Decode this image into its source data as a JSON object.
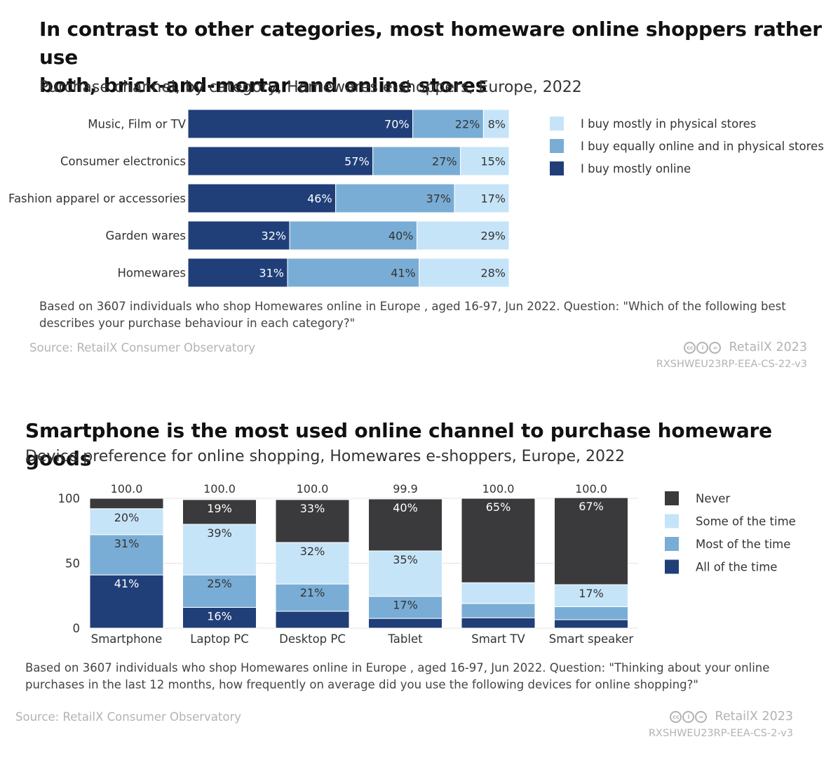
{
  "colors": {
    "physical": "#c6e4f8",
    "equal": "#79add5",
    "online": "#203f79",
    "never": "#3a3a3c",
    "some": "#c6e4f8",
    "most": "#79add5",
    "all": "#203f79"
  },
  "chart1": {
    "title": "In contrast to other categories, most homeware online shoppers rather use both, brick-and-mortar and online stores",
    "title_line1": "In contrast to other categories, most homeware online shoppers rather use",
    "title_line2": "both, brick-and-mortar and online stores",
    "subtitle": "Purchase channel, by category, Homewares e-shoppers, Europe, 2022",
    "note_line1": "Based on 3607 individuals who shop Homewares online in Europe , aged 16-97, Jun 2022. Question: \"Which of the following best",
    "note_line2": "describes your purchase behaviour in each category?\"",
    "source": "Source: RetailX Consumer Observatory",
    "brand": "RetailX 2023",
    "code": "RXSHWEU23RP-EEA-CS-22-v3"
  },
  "chart2": {
    "title": "Smartphone is the most used online channel to purchase homeware goods",
    "subtitle": "Device preference for online shopping, Homewares e-shoppers, Europe, 2022",
    "note_line1": "Based on 3607 individuals who shop Homewares online in Europe , aged 16-97, Jun 2022. Question: \"Thinking about your online",
    "note_line2": "purchases in the last 12 months, how frequently on average did you use the following devices for online shopping?\"",
    "source": "Source: RetailX Consumer Observatory",
    "brand": "RetailX 2023",
    "code": "RXSHWEU23RP-EEA-CS-2-v3"
  },
  "chart_data": [
    {
      "type": "bar",
      "orientation": "horizontal",
      "stacked": true,
      "title": "In contrast to other categories, most homeware online shoppers rather use both, brick-and-mortar and online stores",
      "categories": [
        "Music, Film or TV",
        "Consumer electronics",
        "Fashion apparel or accessories",
        "Garden wares",
        "Homewares"
      ],
      "series": [
        {
          "name": "I buy mostly online",
          "values": [
            70,
            57,
            46,
            32,
            31
          ],
          "labels": [
            "70%",
            "57%",
            "46%",
            "32%",
            "31%"
          ]
        },
        {
          "name": "I buy equally online and in physical stores",
          "values": [
            22,
            27,
            37,
            40,
            41
          ],
          "labels": [
            "22%",
            "27%",
            "37%",
            "40%",
            "41%"
          ]
        },
        {
          "name": "I buy mostly in physical stores",
          "values": [
            8,
            15,
            17,
            29,
            28
          ],
          "labels": [
            "8%",
            "15%",
            "17%",
            "29%",
            "28%"
          ]
        }
      ],
      "legend": [
        {
          "key": "physical",
          "label": "I buy mostly in physical stores"
        },
        {
          "key": "equal",
          "label": "I buy equally online and in physical stores"
        },
        {
          "key": "online",
          "label": "I buy mostly online"
        }
      ],
      "legend_position": "right"
    },
    {
      "type": "bar",
      "orientation": "vertical",
      "stacked": true,
      "title": "Smartphone is the most used online channel to purchase homeware goods",
      "categories": [
        "Smartphone",
        "Laptop PC",
        "Desktop PC",
        "Tablet",
        "Smart TV",
        "Smart speaker"
      ],
      "totals": [
        "100.0",
        "100.0",
        "100.0",
        "99.9",
        "100.0",
        "100.0"
      ],
      "series": [
        {
          "name": "All of the time",
          "values": [
            41,
            16,
            13,
            7.5,
            8,
            6.5
          ],
          "labels": [
            "41%",
            "16%",
            "",
            "",
            "",
            ""
          ]
        },
        {
          "name": "Most of the time",
          "values": [
            31,
            25,
            21,
            17,
            11,
            10
          ],
          "labels": [
            "31%",
            "25%",
            "21%",
            "17%",
            "",
            ""
          ]
        },
        {
          "name": "Some of the time",
          "values": [
            20,
            39,
            32,
            35,
            16,
            17
          ],
          "labels": [
            "20%",
            "39%",
            "32%",
            "35%",
            "",
            "17%"
          ]
        },
        {
          "name": "Never",
          "values": [
            8,
            19,
            33,
            40,
            65,
            67
          ],
          "labels": [
            "",
            "19%",
            "33%",
            "40%",
            "65%",
            "67%"
          ]
        }
      ],
      "ylim": [
        0,
        100
      ],
      "yticks": [
        0,
        50,
        100
      ],
      "legend": [
        {
          "key": "never",
          "label": "Never"
        },
        {
          "key": "some",
          "label": "Some of the time"
        },
        {
          "key": "most",
          "label": "Most of the time"
        },
        {
          "key": "all",
          "label": "All of the time"
        }
      ],
      "legend_position": "right"
    }
  ]
}
